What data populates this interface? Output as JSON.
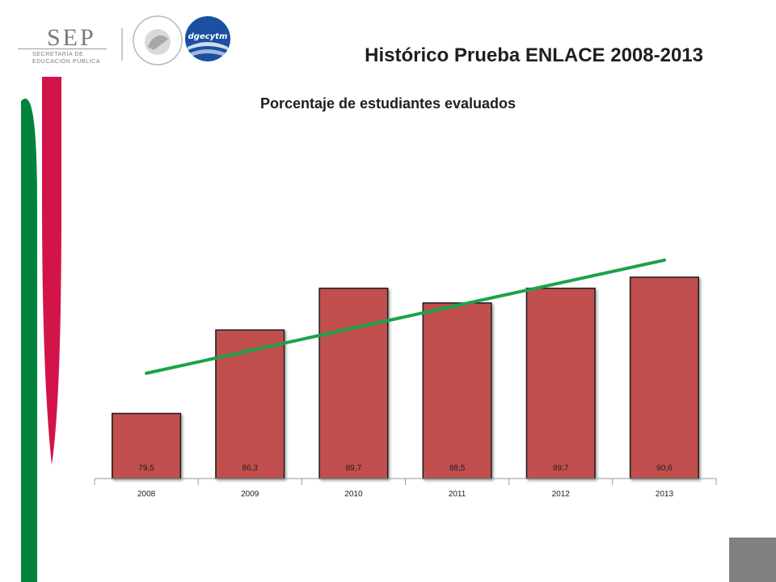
{
  "header": {
    "sep_name": "SEP",
    "sep_subtitle_1": "SECRETARÍA DE",
    "sep_subtitle_2": "EDUCACIÓN PÚBLICA",
    "seal_text": "ESTADOS UNIDOS MEXICANOS",
    "dgecytm_text": "dgecytm",
    "title": "Histórico Prueba ENLACE 2008-2013"
  },
  "colors": {
    "bar": "#c0504d",
    "trend": "#1aa34a",
    "stripe_red": "#d2144a",
    "stripe_green": "#00843d",
    "corner": "#808080"
  },
  "chart_data": {
    "type": "bar",
    "title": "Porcentaje de estudiantes evaluados",
    "categories": [
      "2008",
      "2009",
      "2010",
      "2011",
      "2012",
      "2013"
    ],
    "values": [
      79.5,
      86.3,
      89.7,
      88.5,
      89.7,
      90.6
    ],
    "value_labels": [
      "79,5",
      "86,3",
      "89,7",
      "88,5",
      "89,7",
      "90,6"
    ],
    "ylim": [
      74.2,
      101
    ],
    "trendline": {
      "type": "linear"
    },
    "grid": false,
    "legend": "none"
  }
}
